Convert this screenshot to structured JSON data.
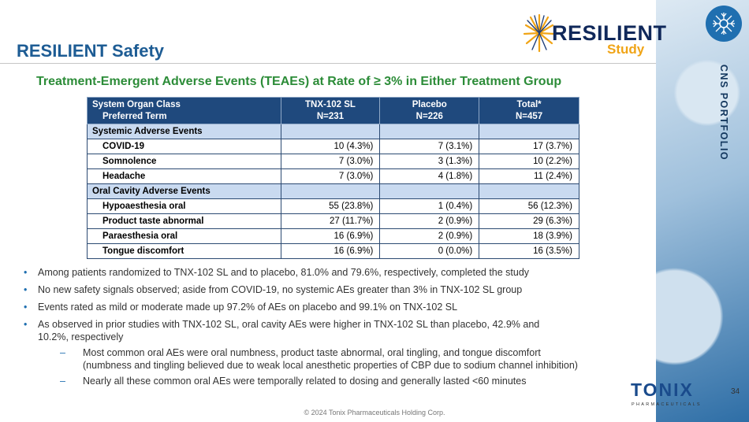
{
  "slide": {
    "title": "RESILIENT Safety",
    "subtitle": "Treatment-Emergent Adverse Events (TEAEs) at Rate of ≥ 3% in Either Treatment Group",
    "side_label": "CNS PORTFOLIO",
    "page_number": "34",
    "footer": "© 2024 Tonix Pharmaceuticals Holding Corp."
  },
  "logo": {
    "word": "RESILIENT",
    "sub": "Study"
  },
  "brand": {
    "name": "TONIX",
    "tagline": "PHARMACEUTICALS"
  },
  "table": {
    "headers": {
      "col1_line1": "System Organ Class",
      "col1_line2": "Preferred Term",
      "col2_line1": "TNX-102 SL",
      "col2_line2": "N=231",
      "col3_line1": "Placebo",
      "col3_line2": "N=226",
      "col4_line1": "Total*",
      "col4_line2": "N=457"
    },
    "rows": [
      {
        "term": "Systemic Adverse Events",
        "tnx": "",
        "placebo": "",
        "total": ""
      },
      {
        "term": "COVID-19",
        "tnx": "10 (4.3%)",
        "placebo": "7 (3.1%)",
        "total": "17 (3.7%)"
      },
      {
        "term": "Somnolence",
        "tnx": "7 (3.0%)",
        "placebo": "3 (1.3%)",
        "total": "10 (2.2%)"
      },
      {
        "term": "Headache",
        "tnx": "7 (3.0%)",
        "placebo": "4 (1.8%)",
        "total": "11 (2.4%)"
      },
      {
        "term": "Oral Cavity Adverse Events",
        "tnx": "",
        "placebo": "",
        "total": ""
      },
      {
        "term": "Hypoaesthesia oral",
        "tnx": "55 (23.8%)",
        "placebo": "1 (0.4%)",
        "total": "56 (12.3%)"
      },
      {
        "term": "Product taste abnormal",
        "tnx": "27 (11.7%)",
        "placebo": "2 (0.9%)",
        "total": "29 (6.3%)"
      },
      {
        "term": "Paraesthesia oral",
        "tnx": "16 (6.9%)",
        "placebo": "2 (0.9%)",
        "total": "18 (3.9%)"
      },
      {
        "term": "Tongue discomfort",
        "tnx": "16 (6.9%)",
        "placebo": "0 (0.0%)",
        "total": "16 (3.5%)"
      }
    ]
  },
  "bullets": {
    "b1": "Among patients randomized to TNX-102 SL and to placebo, 81.0% and 79.6%, respectively, completed the study",
    "b2": "No new safety signals observed; aside from COVID-19, no systemic AEs greater than 3% in TNX-102 SL group",
    "b3": "Events rated as mild or moderate made up 97.2% of AEs on placebo and 99.1% on TNX-102 SL",
    "b4_line1": "As observed in prior studies with TNX-102 SL, oral cavity AEs were higher in TNX-102 SL than placebo, 42.9% and",
    "b4_line2": "10.2%, respectively",
    "sub1_line1": "Most common oral AEs were oral numbness, product taste abnormal, oral tingling, and tongue discomfort",
    "sub1_line2": "(numbness and tingling believed due to weak local anesthetic properties of CBP due to sodium channel inhibition)",
    "sub2": "Nearly all these common oral AEs were temporally related to dosing and generally lasted <60 minutes"
  },
  "colors": {
    "title_blue": "#1d5c94",
    "subtitle_green": "#2c8c38",
    "header_navy": "#1f497d",
    "section_blue": "#c9daf0"
  }
}
